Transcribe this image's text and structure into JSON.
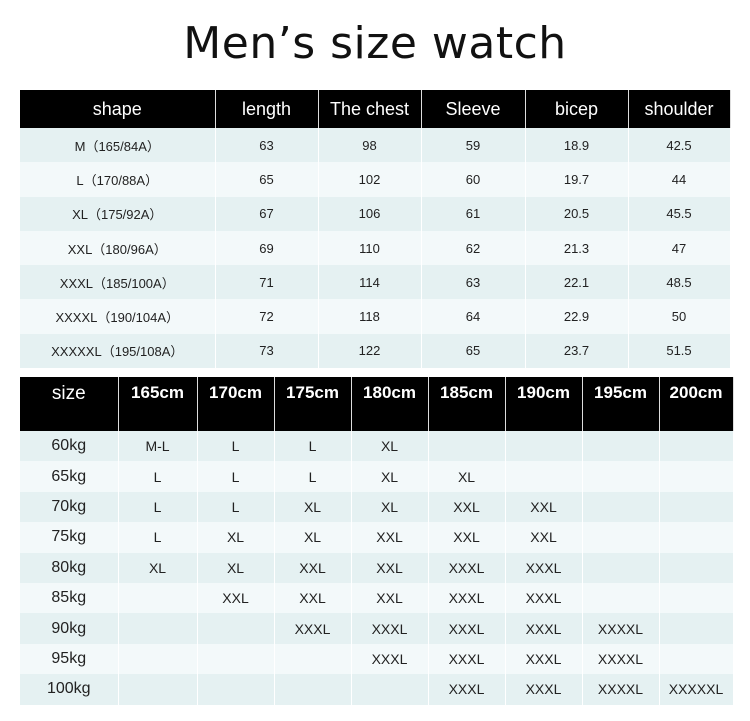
{
  "title": "Men’s size watch",
  "measure_table": {
    "headers": [
      "shape",
      "length",
      "The chest",
      "Sleeve",
      "bicep",
      "shoulder"
    ],
    "rows": [
      [
        "M（165/84A）",
        "63",
        "98",
        "59",
        "18.9",
        "42.5"
      ],
      [
        "L（170/88A）",
        "65",
        "102",
        "60",
        "19.7",
        "44"
      ],
      [
        "XL（175/92A）",
        "67",
        "106",
        "61",
        "20.5",
        "45.5"
      ],
      [
        "XXL（180/96A）",
        "69",
        "110",
        "62",
        "21.3",
        "47"
      ],
      [
        "XXXL（185/100A）",
        "71",
        "114",
        "63",
        "22.1",
        "48.5"
      ],
      [
        "XXXXL（190/104A）",
        "72",
        "118",
        "64",
        "22.9",
        "50"
      ],
      [
        "XXXXXL（195/108A）",
        "73",
        "122",
        "65",
        "23.7",
        "51.5"
      ]
    ]
  },
  "fit_table": {
    "headers": [
      "size",
      "165cm",
      "170cm",
      "175cm",
      "180cm",
      "185cm",
      "190cm",
      "195cm",
      "200cm"
    ],
    "rows": [
      [
        "60kg",
        "M-L",
        "L",
        "L",
        "XL",
        "",
        "",
        "",
        ""
      ],
      [
        "65kg",
        "L",
        "L",
        "L",
        "XL",
        "XL",
        "",
        "",
        ""
      ],
      [
        "70kg",
        "L",
        "L",
        "XL",
        "XL",
        "XXL",
        "XXL",
        "",
        ""
      ],
      [
        "75kg",
        "L",
        "XL",
        "XL",
        "XXL",
        "XXL",
        "XXL",
        "",
        ""
      ],
      [
        "80kg",
        "XL",
        "XL",
        "XXL",
        "XXL",
        "XXXL",
        "XXXL",
        "",
        ""
      ],
      [
        "85kg",
        "",
        "XXL",
        "XXL",
        "XXL",
        "XXXL",
        "XXXL",
        "",
        ""
      ],
      [
        "90kg",
        "",
        "",
        "XXXL",
        "XXXL",
        "XXXL",
        "XXXL",
        "XXXXL",
        ""
      ],
      [
        "95kg",
        "",
        "",
        "",
        "XXXL",
        "XXXL",
        "XXXL",
        "XXXXL",
        ""
      ],
      [
        "100kg",
        "",
        "",
        "",
        "",
        "XXXL",
        "XXXL",
        "XXXXL",
        "XXXXXL"
      ]
    ]
  }
}
